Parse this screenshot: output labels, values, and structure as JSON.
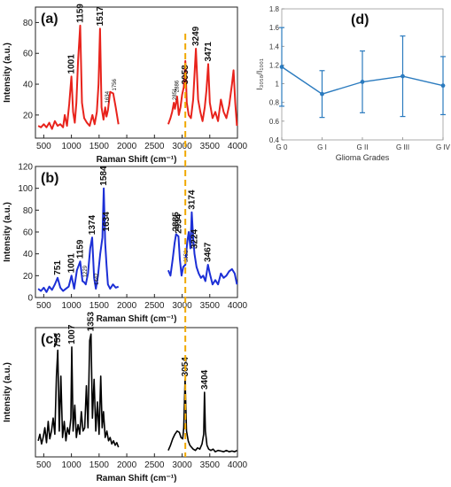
{
  "chart_data": [
    {
      "panel": "(a)",
      "type": "line",
      "color": "#e8231c",
      "xlabel": "Raman Shift (cm⁻¹)",
      "ylabel": "Intensity (a.u.)",
      "xlim": [
        350,
        4000
      ],
      "ylim": [
        5,
        90
      ],
      "xticks": [
        500,
        1000,
        1500,
        2000,
        2500,
        3000,
        3500,
        4000
      ],
      "yticks": [
        20,
        40,
        60,
        80
      ],
      "segments": [
        {
          "x": [
            400,
            450,
            500,
            550,
            600,
            650,
            700,
            750,
            800,
            850,
            880,
            920,
            960,
            1000,
            1030,
            1060,
            1090,
            1120,
            1159,
            1190,
            1230,
            1280,
            1330,
            1380,
            1420,
            1460,
            1490,
            1517,
            1545,
            1580,
            1610,
            1634,
            1660,
            1700,
            1756,
            1800,
            1850
          ],
          "y": [
            13,
            12,
            14,
            12,
            15,
            11,
            16,
            13,
            14,
            12,
            20,
            13,
            27,
            45,
            22,
            15,
            28,
            55,
            78,
            28,
            18,
            15,
            13,
            20,
            14,
            22,
            40,
            76,
            25,
            17,
            25,
            19,
            23,
            35,
            34,
            25,
            14
          ]
        },
        {
          "x": [
            2750,
            2790,
            2820,
            2851,
            2870,
            2886,
            2910,
            2940,
            2970,
            3000,
            3030,
            3058,
            3085,
            3120,
            3160,
            3200,
            3249,
            3290,
            3330,
            3370,
            3410,
            3440,
            3471,
            3500,
            3550,
            3600,
            3650,
            3700,
            3750,
            3800,
            3850,
            3900,
            3930,
            3960,
            3990
          ],
          "y": [
            14,
            18,
            22,
            28,
            24,
            27,
            32,
            20,
            25,
            33,
            38,
            55,
            28,
            20,
            18,
            30,
            63,
            30,
            22,
            16,
            25,
            36,
            53,
            28,
            18,
            22,
            16,
            30,
            22,
            18,
            26,
            40,
            49,
            28,
            13
          ]
        }
      ],
      "peak_labels": [
        {
          "x": 1001,
          "y": 45,
          "text": "1001",
          "size": "normal"
        },
        {
          "x": 1159,
          "y": 78,
          "text": "1159",
          "size": "normal"
        },
        {
          "x": 1517,
          "y": 76,
          "text": "1517",
          "size": "normal"
        },
        {
          "x": 1634,
          "y": 26,
          "text": "1634",
          "size": "small"
        },
        {
          "x": 1756,
          "y": 34,
          "text": "1756",
          "size": "small"
        },
        {
          "x": 2851,
          "y": 28,
          "text": "2851",
          "size": "small"
        },
        {
          "x": 2886,
          "y": 33,
          "text": "2886",
          "size": "small"
        },
        {
          "x": 3058,
          "y": 38,
          "text": "3058",
          "size": "normal"
        },
        {
          "x": 3249,
          "y": 63,
          "text": "3249",
          "size": "normal"
        },
        {
          "x": 3471,
          "y": 53,
          "text": "3471",
          "size": "normal"
        }
      ]
    },
    {
      "panel": "(b)",
      "type": "line",
      "color": "#1c2fd6",
      "xlabel": "Raman Shift (cm⁻¹)",
      "ylabel": "Intensity (a.u.)",
      "xlim": [
        350,
        4000
      ],
      "ylim": [
        0,
        120
      ],
      "xticks": [
        500,
        1000,
        1500,
        2000,
        2500,
        3000,
        3500,
        4000
      ],
      "yticks": [
        0,
        20,
        40,
        60,
        80,
        100,
        120
      ],
      "segments": [
        {
          "x": [
            400,
            450,
            500,
            550,
            600,
            650,
            700,
            751,
            800,
            850,
            900,
            950,
            1001,
            1050,
            1100,
            1159,
            1200,
            1229,
            1260,
            1300,
            1340,
            1374,
            1410,
            1442,
            1480,
            1520,
            1560,
            1584,
            1610,
            1634,
            1660,
            1700,
            1750,
            1800,
            1850
          ],
          "y": [
            8,
            6,
            9,
            5,
            10,
            7,
            12,
            18,
            9,
            6,
            8,
            10,
            20,
            8,
            25,
            33,
            15,
            14,
            12,
            22,
            45,
            55,
            18,
            8,
            20,
            40,
            55,
            100,
            50,
            30,
            12,
            8,
            12,
            9,
            10
          ]
        },
        {
          "x": [
            2750,
            2790,
            2830,
            2865,
            2890,
            2934,
            2960,
            2990,
            3020,
            3058,
            3090,
            3120,
            3150,
            3174,
            3200,
            3224,
            3260,
            3300,
            3340,
            3380,
            3420,
            3467,
            3500,
            3550,
            3600,
            3650,
            3700,
            3750,
            3800,
            3850,
            3900,
            3950,
            3990
          ],
          "y": [
            25,
            20,
            35,
            50,
            58,
            56,
            35,
            20,
            28,
            30,
            50,
            60,
            45,
            78,
            55,
            40,
            28,
            22,
            18,
            20,
            15,
            30,
            22,
            12,
            16,
            12,
            22,
            18,
            20,
            24,
            26,
            22,
            12
          ]
        }
      ],
      "peak_labels": [
        {
          "x": 751,
          "y": 18,
          "text": "751",
          "size": "normal"
        },
        {
          "x": 1001,
          "y": 20,
          "text": "1001",
          "size": "normal"
        },
        {
          "x": 1159,
          "y": 33,
          "text": "1159",
          "size": "normal"
        },
        {
          "x": 1229,
          "y": 16,
          "text": "1229",
          "size": "small"
        },
        {
          "x": 1374,
          "y": 55,
          "text": "1374",
          "size": "normal"
        },
        {
          "x": 1442,
          "y": 9,
          "text": "1442",
          "size": "small"
        },
        {
          "x": 1584,
          "y": 100,
          "text": "1584",
          "size": "normal"
        },
        {
          "x": 1634,
          "y": 58,
          "text": "1634",
          "size": "normal"
        },
        {
          "x": 2885,
          "y": 58,
          "text": "2885",
          "size": "normal"
        },
        {
          "x": 2934,
          "y": 56,
          "text": "2934",
          "size": "normal"
        },
        {
          "x": 3058,
          "y": 30,
          "text": "3058",
          "size": "small"
        },
        {
          "x": 3174,
          "y": 78,
          "text": "3174",
          "size": "normal"
        },
        {
          "x": 3224,
          "y": 42,
          "text": "3224",
          "size": "normal"
        },
        {
          "x": 3467,
          "y": 30,
          "text": "3467",
          "size": "normal"
        }
      ]
    },
    {
      "panel": "(c)",
      "type": "line",
      "color": "#000000",
      "xlabel": "Raman Shift (cm⁻¹)",
      "ylabel": "Intensity (a.u.)",
      "xlim": [
        350,
        4000
      ],
      "ylim": [
        0,
        200
      ],
      "xticks": [
        500,
        1000,
        1500,
        2000,
        2500,
        3000,
        3500,
        4000
      ],
      "yticks": [],
      "segments": [
        {
          "x": [
            400,
            430,
            460,
            490,
            520,
            550,
            580,
            610,
            640,
            670,
            700,
            730,
            753,
            780,
            810,
            840,
            870,
            900,
            930,
            960,
            990,
            1007,
            1030,
            1060,
            1090,
            1120,
            1150,
            1180,
            1210,
            1240,
            1270,
            1300,
            1330,
            1353,
            1380,
            1410,
            1440,
            1470,
            1500,
            1530,
            1555,
            1580,
            1610,
            1640,
            1670,
            1700,
            1730,
            1760,
            1790,
            1820,
            1850
          ],
          "y": [
            25,
            35,
            20,
            30,
            45,
            22,
            55,
            28,
            40,
            60,
            35,
            125,
            165,
            40,
            125,
            30,
            55,
            25,
            45,
            35,
            60,
            170,
            40,
            80,
            30,
            50,
            35,
            70,
            40,
            45,
            110,
            45,
            180,
            190,
            60,
            120,
            40,
            85,
            35,
            125,
            45,
            70,
            30,
            40,
            25,
            30,
            20,
            25,
            18,
            22,
            15
          ]
        },
        {
          "x": [
            2750,
            2790,
            2830,
            2870,
            2910,
            2950,
            2980,
            3010,
            3030,
            3054,
            3080,
            3110,
            3140,
            3170,
            3200,
            3240,
            3280,
            3320,
            3360,
            3390,
            3404,
            3420,
            3450,
            3480,
            3520,
            3560,
            3600,
            3650,
            3700,
            3750,
            3800,
            3850,
            3900,
            3950,
            3990
          ],
          "y": [
            10,
            18,
            28,
            35,
            40,
            38,
            30,
            28,
            45,
            120,
            40,
            25,
            18,
            15,
            12,
            10,
            14,
            12,
            20,
            35,
            100,
            40,
            18,
            12,
            10,
            12,
            8,
            10,
            9,
            8,
            10,
            8,
            9,
            8,
            10
          ]
        }
      ],
      "peak_labels": [
        {
          "x": 753,
          "y": 165,
          "text": "753",
          "size": "normal"
        },
        {
          "x": 1007,
          "y": 170,
          "text": "1007",
          "size": "normal"
        },
        {
          "x": 1353,
          "y": 190,
          "text": "1353",
          "size": "normal"
        },
        {
          "x": 3054,
          "y": 120,
          "text": "3054",
          "size": "normal"
        },
        {
          "x": 3404,
          "y": 100,
          "text": "3404",
          "size": "normal"
        }
      ]
    },
    {
      "panel": "(d)",
      "type": "line",
      "color": "#2b7bbf",
      "xlabel": "Glioma Grades",
      "ylabel": "I₃₀₅₈/I₁₀₀₁",
      "ylim": [
        0.4,
        1.8
      ],
      "yticks": [
        0.4,
        0.6,
        0.8,
        1,
        1.2,
        1.4,
        1.6,
        1.8
      ],
      "categories": [
        "G 0",
        "G I",
        "G II",
        "G III",
        "G IV"
      ],
      "values": [
        1.18,
        0.89,
        1.02,
        1.08,
        0.98
      ],
      "errors": [
        0.42,
        0.25,
        0.33,
        0.43,
        0.31
      ]
    }
  ],
  "guide_line": {
    "x": 3058,
    "color": "#f0a800"
  }
}
